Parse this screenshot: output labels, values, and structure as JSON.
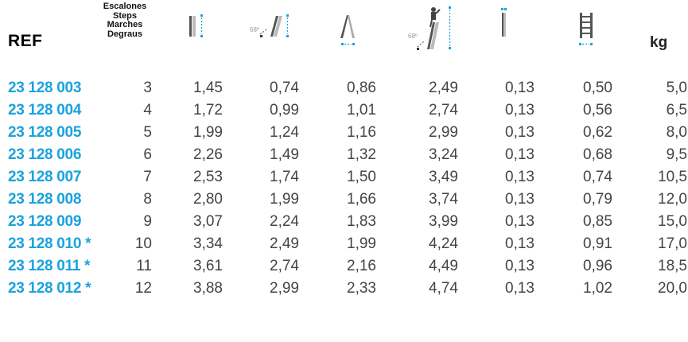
{
  "header": {
    "ref_label": "REF",
    "steps_labels": [
      "Escalones",
      "Steps",
      "Marches",
      "Degraus"
    ],
    "angle_label": "68º",
    "kg_label": "kg",
    "accent_color": "#1aa3dd",
    "icons": [
      "closed-ladder-height-icon",
      "leaning-ladder-reach-icon",
      "a-frame-base-width-icon",
      "person-working-height-icon",
      "ladder-depth-icon",
      "ladder-width-icon"
    ]
  },
  "rows": [
    {
      "ref": "23 128 003",
      "steps": "3",
      "v1": "1,45",
      "v2": "0,74",
      "v3": "0,86",
      "v4": "2,49",
      "v5": "0,13",
      "v6": "0,50",
      "kg": "5,0"
    },
    {
      "ref": "23 128 004",
      "steps": "4",
      "v1": "1,72",
      "v2": "0,99",
      "v3": "1,01",
      "v4": "2,74",
      "v5": "0,13",
      "v6": "0,56",
      "kg": "6,5"
    },
    {
      "ref": "23 128 005",
      "steps": "5",
      "v1": "1,99",
      "v2": "1,24",
      "v3": "1,16",
      "v4": "2,99",
      "v5": "0,13",
      "v6": "0,62",
      "kg": "8,0"
    },
    {
      "ref": "23 128 006",
      "steps": "6",
      "v1": "2,26",
      "v2": "1,49",
      "v3": "1,32",
      "v4": "3,24",
      "v5": "0,13",
      "v6": "0,68",
      "kg": "9,5"
    },
    {
      "ref": "23 128 007",
      "steps": "7",
      "v1": "2,53",
      "v2": "1,74",
      "v3": "1,50",
      "v4": "3,49",
      "v5": "0,13",
      "v6": "0,74",
      "kg": "10,5"
    },
    {
      "ref": "23 128 008",
      "steps": "8",
      "v1": "2,80",
      "v2": "1,99",
      "v3": "1,66",
      "v4": "3,74",
      "v5": "0,13",
      "v6": "0,79",
      "kg": "12,0"
    },
    {
      "ref": "23 128 009",
      "steps": "9",
      "v1": "3,07",
      "v2": "2,24",
      "v3": "1,83",
      "v4": "3,99",
      "v5": "0,13",
      "v6": "0,85",
      "kg": "15,0"
    },
    {
      "ref": "23 128 010 *",
      "steps": "10",
      "v1": "3,34",
      "v2": "2,49",
      "v3": "1,99",
      "v4": "4,24",
      "v5": "0,13",
      "v6": "0,91",
      "kg": "17,0"
    },
    {
      "ref": "23 128 011 *",
      "steps": "11",
      "v1": "3,61",
      "v2": "2,74",
      "v3": "2,16",
      "v4": "4,49",
      "v5": "0,13",
      "v6": "0,96",
      "kg": "18,5"
    },
    {
      "ref": "23 128 012 *",
      "steps": "12",
      "v1": "3,88",
      "v2": "2,99",
      "v3": "2,33",
      "v4": "4,74",
      "v5": "0,13",
      "v6": "1,02",
      "kg": "20,0"
    }
  ]
}
